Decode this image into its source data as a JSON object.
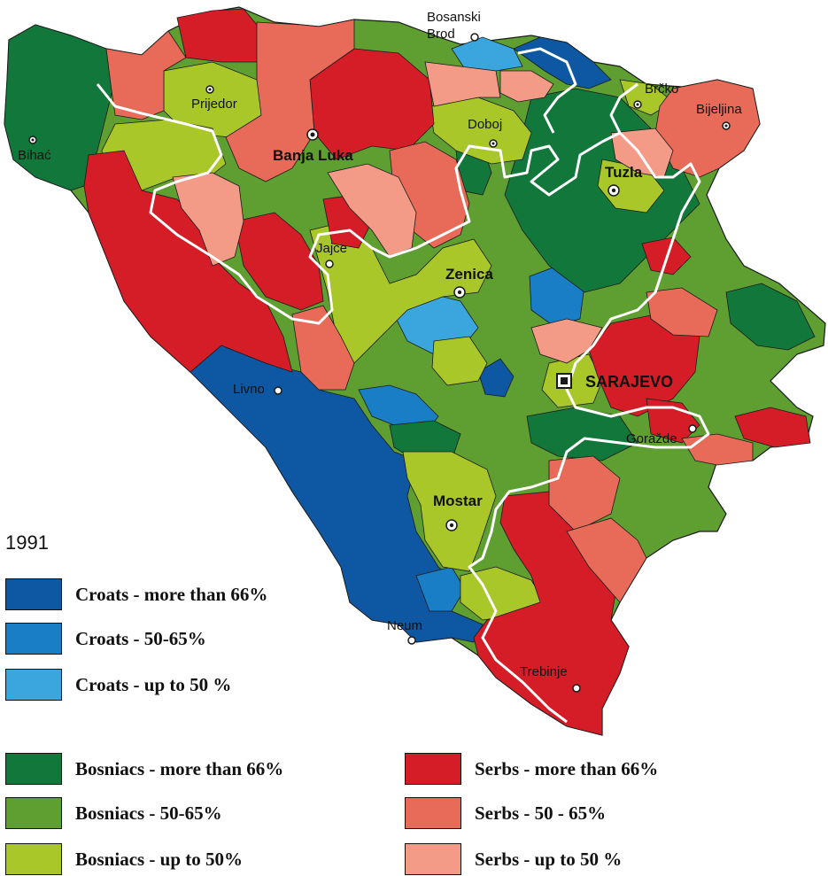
{
  "year": "1991",
  "palette": {
    "croats_66": "#0e57a2",
    "croats_50": "#1a7ec7",
    "croats_lt50": "#3aa6dd",
    "bosniacs_66": "#12773a",
    "bosniacs_50": "#5f9e31",
    "bosniacs_lt50": "#aac72a",
    "serbs_66": "#d41d27",
    "serbs_50": "#e76b58",
    "serbs_lt50": "#f39b87",
    "border": "#ffffff"
  },
  "cities": [
    {
      "name": "Bosanski",
      "key": "bosanski-brod"
    },
    {
      "name": "Brod",
      "key": "bosanski-brod"
    },
    {
      "name": "Prijedor",
      "key": "prijedor"
    },
    {
      "name": "Bihać",
      "key": "bihac"
    },
    {
      "name": "Banja Luka",
      "key": "banja-luka"
    },
    {
      "name": "Doboj",
      "key": "doboj"
    },
    {
      "name": "Brčko",
      "key": "brcko"
    },
    {
      "name": "Bijeljina",
      "key": "bijeljina"
    },
    {
      "name": "Tuzla",
      "key": "tuzla"
    },
    {
      "name": "Jajce",
      "key": "jajce"
    },
    {
      "name": "Zenica",
      "key": "zenica"
    },
    {
      "name": "SARAJEVO",
      "key": "sarajevo"
    },
    {
      "name": "Livno",
      "key": "livno"
    },
    {
      "name": "Goražde",
      "key": "gorazde"
    },
    {
      "name": "Mostar",
      "key": "mostar"
    },
    {
      "name": "Neum",
      "key": "neum"
    },
    {
      "name": "Trebinje",
      "key": "trebinje"
    }
  ],
  "legend": [
    {
      "label": "Croats - more than 66%",
      "color": "#0e57a2"
    },
    {
      "label": "Croats - 50-65%",
      "color": "#1a7ec7"
    },
    {
      "label": "Croats - up to 50 %",
      "color": "#3aa6dd"
    },
    {
      "label": "Bosniacs - more than 66%",
      "color": "#12773a"
    },
    {
      "label": "Bosniacs - 50-65%",
      "color": "#5f9e31"
    },
    {
      "label": "Bosniacs - up to 50%",
      "color": "#aac72a"
    },
    {
      "label": "Serbs - more than 66%",
      "color": "#d41d27"
    },
    {
      "label": "Serbs - 50 - 65%",
      "color": "#e76b58"
    },
    {
      "label": "Serbs - up to 50 %",
      "color": "#f39b87"
    }
  ]
}
